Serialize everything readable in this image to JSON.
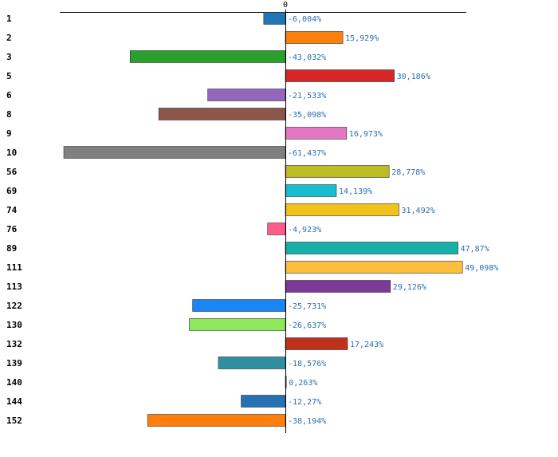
{
  "chart_data": {
    "type": "bar",
    "orientation": "horizontal",
    "title": "",
    "xlabel": "",
    "ylabel": "",
    "grid": false,
    "zero_tick_label": "0",
    "xlim": [
      -61.437,
      49.098
    ],
    "categories": [
      "1",
      "2",
      "3",
      "5",
      "6",
      "8",
      "9",
      "10",
      "56",
      "69",
      "74",
      "76",
      "89",
      "111",
      "113",
      "122",
      "130",
      "132",
      "139",
      "140",
      "144",
      "152"
    ],
    "values": [
      -6.004,
      15.929,
      -43.032,
      30.186,
      -21.533,
      -35.098,
      16.973,
      -61.437,
      28.778,
      14.139,
      31.492,
      -4.923,
      47.87,
      49.098,
      29.126,
      -25.731,
      -26.637,
      17.243,
      -18.576,
      0.263,
      -12.27,
      -38.194
    ],
    "value_labels": [
      "-6,004%",
      "15,929%",
      "-43,032%",
      "30,186%",
      "-21,533%",
      "-35,098%",
      "16,973%",
      "-61,437%",
      "28,778%",
      "14,139%",
      "31,492%",
      "-4,923%",
      "47,87%",
      "49,098%",
      "29,126%",
      "-25,731%",
      "-26,637%",
      "17,243%",
      "-18,576%",
      "0,263%",
      "-12,27%",
      "-38,194%"
    ],
    "colors": [
      "#1f77b4",
      "#ff7f0e",
      "#2ca02c",
      "#d62728",
      "#9467bd",
      "#8c564b",
      "#e377c2",
      "#7f7f7f",
      "#bcbd22",
      "#17becf",
      "#f2c21a",
      "#ff5c8a",
      "#17b0a6",
      "#ffbe3c",
      "#7b3a96",
      "#1a86f5",
      "#8de85a",
      "#c0311c",
      "#2d8fa0",
      "#8fd0ff",
      "#2671b3",
      "#ff7f0e"
    ]
  }
}
